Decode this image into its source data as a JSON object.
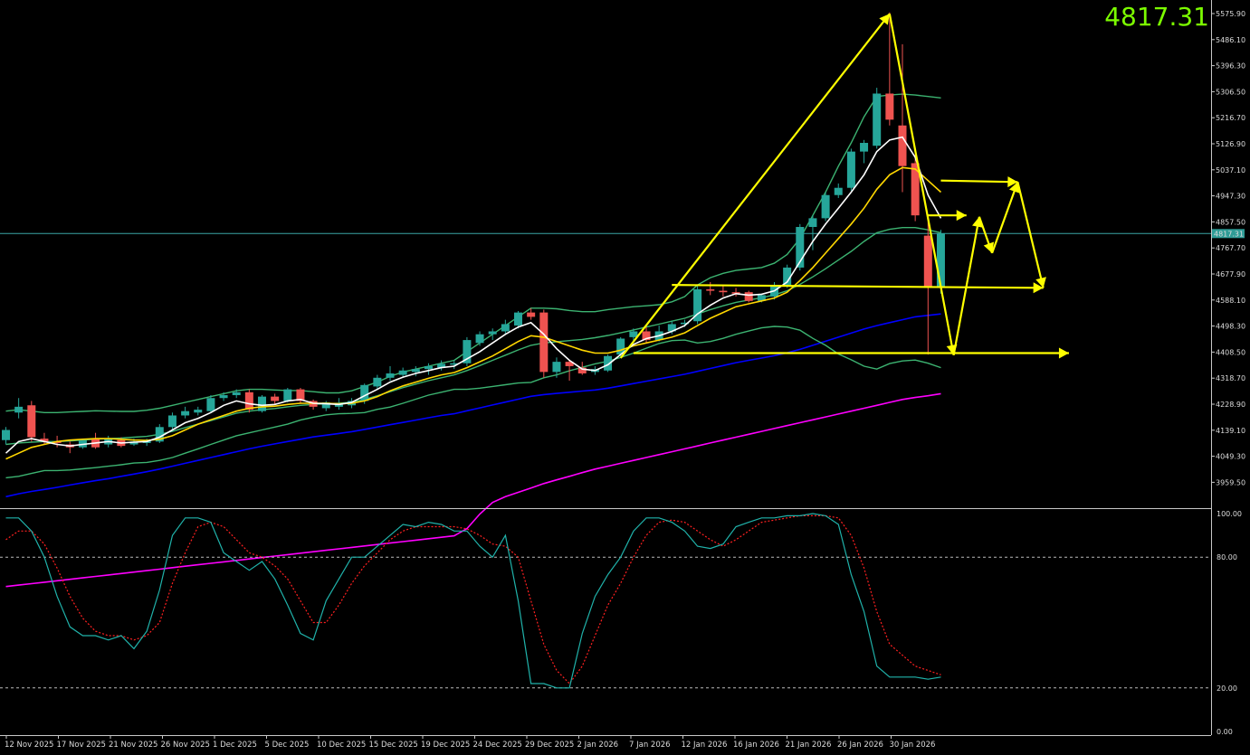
{
  "header": {
    "current_price": "4817.31"
  },
  "price_axis": {
    "labels": [
      "5575.90",
      "5486.10",
      "5396.30",
      "5306.50",
      "5216.70",
      "5126.90",
      "5037.10",
      "4947.30",
      "4857.50",
      "4767.70",
      "4677.90",
      "4588.10",
      "4498.30",
      "4408.50",
      "4318.70",
      "4228.90",
      "4139.10",
      "4049.30",
      "3959.50"
    ],
    "current_price_tag": "4817.31"
  },
  "oscillator_axis": {
    "labels": [
      "100.00",
      "80.00",
      "20.00",
      "0.00"
    ],
    "levels": [
      80,
      20
    ]
  },
  "time_axis": {
    "labels": [
      "12 Nov 2025",
      "17 Nov 2025",
      "21 Nov 2025",
      "26 Nov 2025",
      "1 Dec 2025",
      "5 Dec 2025",
      "10 Dec 2025",
      "15 Dec 2025",
      "19 Dec 2025",
      "24 Dec 2025",
      "29 Dec 2025",
      "2 Jan 2026",
      "7 Jan 2026",
      "12 Jan 2026",
      "16 Jan 2026",
      "21 Jan 2026",
      "26 Jan 2026",
      "30 Jan 2026"
    ]
  },
  "colors": {
    "background": "#000000",
    "bull_candle": "#26a69a",
    "bear_candle": "#ef5350",
    "bollinger": "#3cb371",
    "ma_fast": "#ffffff",
    "ma_mid": "#ffd700",
    "ma_slow": "#0000ff",
    "ma_long": "#ff00ff",
    "stoch_main": "#20b2aa",
    "stoch_signal": "#ff2020",
    "drawing": "#ffff00",
    "price_text": "#7cfc00"
  },
  "chart_data": {
    "type": "candlestick",
    "symbol_price": 4817.31,
    "ylim": [
      3900,
      5600
    ],
    "oscillator_ylim": [
      0,
      100
    ],
    "candles": [
      {
        "o": 4105,
        "h": 4150,
        "l": 4090,
        "c": 4140
      },
      {
        "o": 4200,
        "h": 4250,
        "l": 4180,
        "c": 4220
      },
      {
        "o": 4225,
        "h": 4240,
        "l": 4100,
        "c": 4115
      },
      {
        "o": 4110,
        "h": 4130,
        "l": 4090,
        "c": 4100
      },
      {
        "o": 4100,
        "h": 4120,
        "l": 4080,
        "c": 4095
      },
      {
        "o": 4090,
        "h": 4100,
        "l": 4060,
        "c": 4080
      },
      {
        "o": 4080,
        "h": 4110,
        "l": 4075,
        "c": 4105
      },
      {
        "o": 4110,
        "h": 4130,
        "l": 4075,
        "c": 4080
      },
      {
        "o": 4090,
        "h": 4120,
        "l": 4080,
        "c": 4110
      },
      {
        "o": 4105,
        "h": 4115,
        "l": 4080,
        "c": 4085
      },
      {
        "o": 4090,
        "h": 4110,
        "l": 4085,
        "c": 4100
      },
      {
        "o": 4095,
        "h": 4110,
        "l": 4085,
        "c": 4105
      },
      {
        "o": 4100,
        "h": 4160,
        "l": 4095,
        "c": 4150
      },
      {
        "o": 4150,
        "h": 4200,
        "l": 4140,
        "c": 4190
      },
      {
        "o": 4190,
        "h": 4220,
        "l": 4180,
        "c": 4205
      },
      {
        "o": 4200,
        "h": 4220,
        "l": 4190,
        "c": 4210
      },
      {
        "o": 4205,
        "h": 4260,
        "l": 4200,
        "c": 4250
      },
      {
        "o": 4250,
        "h": 4270,
        "l": 4240,
        "c": 4260
      },
      {
        "o": 4260,
        "h": 4280,
        "l": 4250,
        "c": 4270
      },
      {
        "o": 4270,
        "h": 4280,
        "l": 4200,
        "c": 4210
      },
      {
        "o": 4205,
        "h": 4260,
        "l": 4200,
        "c": 4255
      },
      {
        "o": 4255,
        "h": 4265,
        "l": 4230,
        "c": 4240
      },
      {
        "o": 4240,
        "h": 4285,
        "l": 4235,
        "c": 4280
      },
      {
        "o": 4280,
        "h": 4285,
        "l": 4230,
        "c": 4240
      },
      {
        "o": 4240,
        "h": 4245,
        "l": 4210,
        "c": 4220
      },
      {
        "o": 4215,
        "h": 4240,
        "l": 4205,
        "c": 4235
      },
      {
        "o": 4220,
        "h": 4250,
        "l": 4210,
        "c": 4230
      },
      {
        "o": 4225,
        "h": 4250,
        "l": 4215,
        "c": 4240
      },
      {
        "o": 4240,
        "h": 4300,
        "l": 4230,
        "c": 4295
      },
      {
        "o": 4290,
        "h": 4330,
        "l": 4280,
        "c": 4320
      },
      {
        "o": 4320,
        "h": 4360,
        "l": 4310,
        "c": 4335
      },
      {
        "o": 4330,
        "h": 4355,
        "l": 4320,
        "c": 4345
      },
      {
        "o": 4340,
        "h": 4360,
        "l": 4325,
        "c": 4350
      },
      {
        "o": 4350,
        "h": 4370,
        "l": 4330,
        "c": 4360
      },
      {
        "o": 4355,
        "h": 4380,
        "l": 4345,
        "c": 4368
      },
      {
        "o": 4365,
        "h": 4380,
        "l": 4350,
        "c": 4370
      },
      {
        "o": 4370,
        "h": 4460,
        "l": 4360,
        "c": 4450
      },
      {
        "o": 4440,
        "h": 4480,
        "l": 4430,
        "c": 4470
      },
      {
        "o": 4470,
        "h": 4490,
        "l": 4450,
        "c": 4480
      },
      {
        "o": 4480,
        "h": 4520,
        "l": 4470,
        "c": 4505
      },
      {
        "o": 4500,
        "h": 4550,
        "l": 4490,
        "c": 4545
      },
      {
        "o": 4545,
        "h": 4560,
        "l": 4520,
        "c": 4530
      },
      {
        "o": 4545,
        "h": 4555,
        "l": 4320,
        "c": 4340
      },
      {
        "o": 4340,
        "h": 4390,
        "l": 4320,
        "c": 4375
      },
      {
        "o": 4375,
        "h": 4380,
        "l": 4310,
        "c": 4360
      },
      {
        "o": 4355,
        "h": 4375,
        "l": 4330,
        "c": 4335
      },
      {
        "o": 4340,
        "h": 4360,
        "l": 4330,
        "c": 4350
      },
      {
        "o": 4345,
        "h": 4400,
        "l": 4340,
        "c": 4395
      },
      {
        "o": 4400,
        "h": 4460,
        "l": 4390,
        "c": 4455
      },
      {
        "o": 4460,
        "h": 4490,
        "l": 4440,
        "c": 4480
      },
      {
        "o": 4480,
        "h": 4495,
        "l": 4440,
        "c": 4450
      },
      {
        "o": 4450,
        "h": 4500,
        "l": 4445,
        "c": 4480
      },
      {
        "o": 4480,
        "h": 4515,
        "l": 4470,
        "c": 4505
      },
      {
        "o": 4505,
        "h": 4520,
        "l": 4495,
        "c": 4510
      },
      {
        "o": 4515,
        "h": 4640,
        "l": 4505,
        "c": 4625
      },
      {
        "o": 4625,
        "h": 4650,
        "l": 4605,
        "c": 4620
      },
      {
        "o": 4620,
        "h": 4640,
        "l": 4600,
        "c": 4615
      },
      {
        "o": 4615,
        "h": 4630,
        "l": 4600,
        "c": 4610
      },
      {
        "o": 4615,
        "h": 4620,
        "l": 4580,
        "c": 4585
      },
      {
        "o": 4585,
        "h": 4610,
        "l": 4580,
        "c": 4605
      },
      {
        "o": 4600,
        "h": 4650,
        "l": 4590,
        "c": 4640
      },
      {
        "o": 4640,
        "h": 4710,
        "l": 4630,
        "c": 4700
      },
      {
        "o": 4700,
        "h": 4850,
        "l": 4690,
        "c": 4840
      },
      {
        "o": 4840,
        "h": 4880,
        "l": 4760,
        "c": 4870
      },
      {
        "o": 4870,
        "h": 4960,
        "l": 4860,
        "c": 4950
      },
      {
        "o": 4950,
        "h": 4990,
        "l": 4940,
        "c": 4975
      },
      {
        "o": 4975,
        "h": 5110,
        "l": 4965,
        "c": 5100
      },
      {
        "o": 5100,
        "h": 5140,
        "l": 5060,
        "c": 5130
      },
      {
        "o": 5120,
        "h": 5320,
        "l": 5110,
        "c": 5300
      },
      {
        "o": 5300,
        "h": 5580,
        "l": 5190,
        "c": 5210
      },
      {
        "o": 5190,
        "h": 5470,
        "l": 4960,
        "c": 5050
      },
      {
        "o": 5060,
        "h": 5090,
        "l": 4860,
        "c": 4880
      },
      {
        "o": 4810,
        "h": 4860,
        "l": 4400,
        "c": 4630
      },
      {
        "o": 4630,
        "h": 4830,
        "l": 4610,
        "c": 4817
      }
    ],
    "ma_fast": [
      4060,
      4100,
      4110,
      4100,
      4090,
      4085,
      4090,
      4095,
      4100,
      4095,
      4098,
      4100,
      4115,
      4140,
      4165,
      4180,
      4200,
      4225,
      4240,
      4230,
      4225,
      4228,
      4240,
      4245,
      4232,
      4230,
      4228,
      4235,
      4258,
      4280,
      4305,
      4322,
      4335,
      4345,
      4355,
      4360,
      4385,
      4410,
      4440,
      4470,
      4495,
      4510,
      4470,
      4420,
      4380,
      4350,
      4345,
      4365,
      4400,
      4435,
      4455,
      4465,
      4480,
      4500,
      4540,
      4570,
      4595,
      4610,
      4605,
      4608,
      4620,
      4650,
      4720,
      4790,
      4850,
      4905,
      4960,
      5020,
      5100,
      5140,
      5150,
      5080,
      4950,
      4870
    ],
    "ma_mid": [
      4040,
      4060,
      4080,
      4090,
      4100,
      4105,
      4108,
      4110,
      4110,
      4108,
      4105,
      4104,
      4108,
      4120,
      4140,
      4160,
      4175,
      4190,
      4205,
      4215,
      4220,
      4222,
      4228,
      4232,
      4232,
      4232,
      4230,
      4232,
      4240,
      4255,
      4275,
      4292,
      4305,
      4318,
      4330,
      4338,
      4355,
      4375,
      4395,
      4420,
      4445,
      4465,
      4460,
      4445,
      4430,
      4415,
      4405,
      4405,
      4415,
      4430,
      4440,
      4450,
      4460,
      4475,
      4500,
      4525,
      4545,
      4565,
      4575,
      4585,
      4595,
      4615,
      4655,
      4700,
      4750,
      4800,
      4850,
      4905,
      4970,
      5020,
      5045,
      5040,
      5000,
      4960
    ],
    "ma_slow": [
      3910,
      3920,
      3928,
      3935,
      3942,
      3950,
      3958,
      3965,
      3972,
      3980,
      3988,
      3996,
      4005,
      4015,
      4025,
      4035,
      4045,
      4055,
      4065,
      4075,
      4084,
      4092,
      4100,
      4108,
      4116,
      4122,
      4128,
      4134,
      4142,
      4150,
      4158,
      4166,
      4174,
      4182,
      4190,
      4196,
      4206,
      4216,
      4226,
      4236,
      4246,
      4256,
      4262,
      4266,
      4270,
      4274,
      4278,
      4284,
      4292,
      4300,
      4308,
      4316,
      4324,
      4332,
      4342,
      4352,
      4362,
      4372,
      4380,
      4388,
      4396,
      4406,
      4418,
      4432,
      4446,
      4460,
      4474,
      4488,
      4500,
      4510,
      4520,
      4530,
      4535,
      4540
    ],
    "ma_long": [
      3600,
      3605,
      3610,
      3615,
      3620,
      3625,
      3630,
      3635,
      3640,
      3645,
      3650,
      3655,
      3660,
      3665,
      3670,
      3675,
      3680,
      3685,
      3690,
      3695,
      3700,
      3705,
      3710,
      3715,
      3720,
      3725,
      3730,
      3735,
      3740,
      3745,
      3750,
      3755,
      3760,
      3765,
      3770,
      3775,
      3800,
      3850,
      3890,
      3910,
      3925,
      3940,
      3955,
      3968,
      3980,
      3993,
      4005,
      4015,
      4025,
      4035,
      4045,
      4055,
      4065,
      4075,
      4085,
      4095,
      4105,
      4115,
      4125,
      4135,
      4145,
      4155,
      4165,
      4175,
      4185,
      4195,
      4205,
      4215,
      4225,
      4235,
      4245,
      4252,
      4258,
      4265
    ],
    "bb_upper": [
      4205,
      4210,
      4205,
      4200,
      4200,
      4202,
      4204,
      4206,
      4205,
      4204,
      4204,
      4208,
      4215,
      4225,
      4235,
      4245,
      4255,
      4265,
      4275,
      4280,
      4280,
      4278,
      4276,
      4276,
      4272,
      4268,
      4268,
      4275,
      4290,
      4305,
      4325,
      4340,
      4350,
      4360,
      4370,
      4380,
      4410,
      4440,
      4470,
      4500,
      4530,
      4560,
      4560,
      4558,
      4552,
      4548,
      4548,
      4555,
      4560,
      4565,
      4568,
      4572,
      4582,
      4600,
      4640,
      4665,
      4680,
      4690,
      4695,
      4700,
      4715,
      4745,
      4800,
      4880,
      4960,
      5050,
      5130,
      5220,
      5290,
      5295,
      5298,
      5295,
      5290,
      5285
    ],
    "bb_mid": [
      4090,
      4095,
      4098,
      4100,
      4100,
      4102,
      4105,
      4108,
      4110,
      4112,
      4115,
      4118,
      4125,
      4135,
      4148,
      4160,
      4172,
      4185,
      4198,
      4205,
      4210,
      4214,
      4220,
      4225,
      4228,
      4230,
      4232,
      4236,
      4245,
      4258,
      4272,
      4286,
      4298,
      4310,
      4320,
      4330,
      4345,
      4362,
      4380,
      4398,
      4416,
      4432,
      4440,
      4444,
      4448,
      4452,
      4458,
      4466,
      4475,
      4485,
      4495,
      4505,
      4515,
      4525,
      4540,
      4555,
      4568,
      4580,
      4588,
      4596,
      4606,
      4620,
      4642,
      4668,
      4696,
      4726,
      4756,
      4790,
      4820,
      4832,
      4838,
      4838,
      4830,
      4820
    ],
    "bb_lower": [
      3975,
      3980,
      3990,
      4000,
      4000,
      4002,
      4006,
      4010,
      4015,
      4020,
      4026,
      4028,
      4035,
      4045,
      4060,
      4075,
      4090,
      4105,
      4120,
      4130,
      4140,
      4150,
      4160,
      4174,
      4184,
      4192,
      4196,
      4197,
      4200,
      4211,
      4219,
      4232,
      4246,
      4260,
      4270,
      4280,
      4280,
      4284,
      4290,
      4296,
      4302,
      4304,
      4320,
      4330,
      4344,
      4356,
      4368,
      4377,
      4390,
      4405,
      4422,
      4438,
      4448,
      4450,
      4440,
      4445,
      4456,
      4470,
      4481,
      4492,
      4497,
      4495,
      4484,
      4456,
      4432,
      4402,
      4382,
      4360,
      4350,
      4369,
      4378,
      4381,
      4370,
      4355
    ],
    "stochastic_main": [
      98,
      98,
      92,
      80,
      62,
      48,
      44,
      44,
      42,
      44,
      38,
      46,
      65,
      90,
      98,
      98,
      96,
      82,
      78,
      74,
      78,
      70,
      58,
      45,
      42,
      60,
      70,
      80,
      80,
      85,
      90,
      95,
      94,
      96,
      95,
      92,
      92,
      85,
      80,
      90,
      60,
      22,
      22,
      20,
      20,
      45,
      62,
      72,
      80,
      92,
      98,
      98,
      96,
      92,
      85,
      84,
      86,
      94,
      96,
      98,
      98,
      99,
      99,
      100,
      99,
      95,
      72,
      55,
      30,
      25,
      25,
      25,
      24,
      25
    ],
    "stochastic_signal": [
      88,
      92,
      92,
      86,
      75,
      62,
      52,
      46,
      44,
      44,
      42,
      44,
      50,
      68,
      82,
      94,
      96,
      94,
      88,
      82,
      80,
      76,
      70,
      60,
      50,
      50,
      58,
      68,
      76,
      82,
      88,
      92,
      94,
      94,
      94,
      94,
      93,
      90,
      86,
      85,
      80,
      60,
      40,
      28,
      22,
      30,
      44,
      58,
      68,
      80,
      90,
      96,
      97,
      96,
      92,
      88,
      85,
      88,
      92,
      96,
      97,
      98,
      99,
      99,
      99,
      98,
      90,
      75,
      55,
      40,
      35,
      30,
      28,
      26
    ],
    "yellow_drawing": {
      "zigzag": [
        {
          "t": 48,
          "p": 4388
        },
        {
          "t": 69,
          "p": 5575
        },
        {
          "t": 74,
          "p": 4398
        },
        {
          "t": 76,
          "p": 4875
        }
      ],
      "projection": [
        {
          "t": 76,
          "p": 4875
        },
        {
          "t": 77,
          "p": 4750
        },
        {
          "t": 79,
          "p": 4995
        },
        {
          "t": 81,
          "p": 4630
        }
      ],
      "h_arrows": [
        {
          "t1": 52,
          "t2": 81,
          "p1": 4640,
          "p2": 4630
        },
        {
          "t1": 49,
          "t2": 83,
          "p1": 4405,
          "p2": 4405
        },
        {
          "t1": 72,
          "t2": 75,
          "p1": 4880,
          "p2": 4880
        },
        {
          "t1": 73,
          "t2": 79,
          "p1": 5000,
          "p2": 4995
        }
      ]
    }
  }
}
